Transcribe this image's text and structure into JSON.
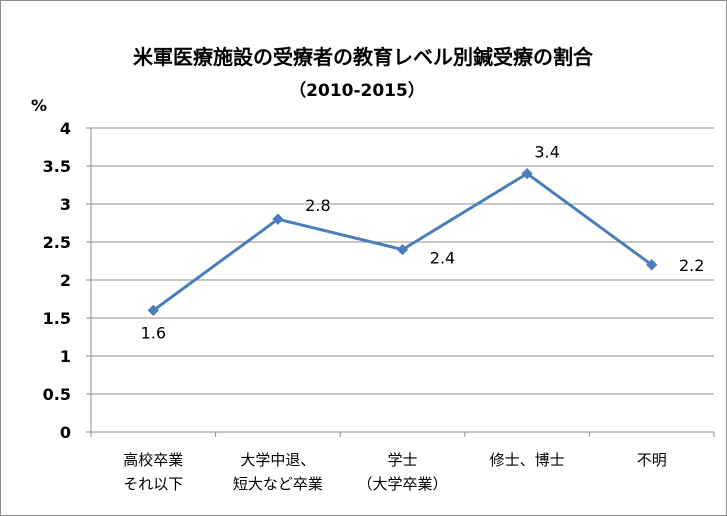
{
  "chart_data": {
    "type": "line",
    "title": "米軍医療施設の受療者の教育レベル別鍼受療の割合",
    "subtitle": "（2010-2015）",
    "ylabel": "%",
    "xlabel": "",
    "ylim": [
      0,
      4
    ],
    "yticks": [
      "0",
      "0.5",
      "1",
      "1.5",
      "2",
      "2.5",
      "3",
      "3.5",
      "4"
    ],
    "categories": [
      [
        "高校卒業",
        "それ以下"
      ],
      [
        "大学中退、",
        "短大など卒業"
      ],
      [
        "学士",
        "（大学卒業）"
      ],
      [
        "修士、博士"
      ],
      [
        "不明"
      ]
    ],
    "series": [
      {
        "values": [
          1.6,
          2.8,
          2.4,
          3.4,
          2.2
        ],
        "labels": [
          "1.6",
          "2.8",
          "2.4",
          "3.4",
          "2.2"
        ]
      }
    ],
    "grid": true,
    "legend": "none",
    "colors": {
      "line": "#4a7ebb",
      "grid": "#8c8c8c",
      "axis": "#8c8c8c"
    }
  }
}
